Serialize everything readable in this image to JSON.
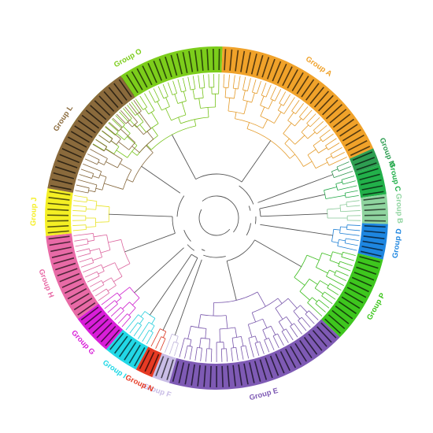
{
  "groups": [
    {
      "id": "O",
      "label": "Group O",
      "color": "#7ccd1b",
      "start": -60,
      "end": 2,
      "leaves": 30
    },
    {
      "id": "A",
      "label": "Group A",
      "color": "#f0a22a",
      "start": 2,
      "end": 66,
      "leaves": 30
    },
    {
      "id": "M",
      "label": "Group M",
      "color": "#2e9e52",
      "start": 66,
      "end": 72,
      "leaves": 3
    },
    {
      "id": "C",
      "label": "Group C",
      "color": "#22b04a",
      "start": 72,
      "end": 82,
      "leaves": 5
    },
    {
      "id": "B",
      "label": "Group B",
      "color": "#8fd49f",
      "start": 82,
      "end": 92,
      "leaves": 5
    },
    {
      "id": "D",
      "label": "Group D",
      "color": "#1e86e0",
      "start": 92,
      "end": 104,
      "leaves": 6
    },
    {
      "id": "P",
      "label": "Group P",
      "color": "#3ec61e",
      "start": 104,
      "end": 134,
      "leaves": 14
    },
    {
      "id": "E",
      "label": "Group E",
      "color": "#7e5ab4",
      "start": 134,
      "end": 196,
      "leaves": 29
    },
    {
      "id": "F",
      "label": "Group F",
      "color": "#c9bde6",
      "start": 196,
      "end": 202,
      "leaves": 3
    },
    {
      "id": "N",
      "label": "Group N",
      "color": "#e63a24",
      "start": 202,
      "end": 208,
      "leaves": 3
    },
    {
      "id": "I",
      "label": "Group I",
      "color": "#22d8e6",
      "start": 208,
      "end": 220,
      "leaves": 6
    },
    {
      "id": "G",
      "label": "Group G",
      "color": "#d81ed8",
      "start": 220,
      "end": 234,
      "leaves": 7
    },
    {
      "id": "H",
      "label": "Group H",
      "color": "#e86aa6",
      "start": 234,
      "end": 264,
      "leaves": 14
    },
    {
      "id": "J",
      "label": "Group J",
      "color": "#f4ef24",
      "start": 264,
      "end": 280,
      "leaves": 8
    },
    {
      "id": "L",
      "label": "Group L",
      "color": "#8a6a3c",
      "start": 280,
      "end": 326,
      "leaves": 21
    }
  ]
}
